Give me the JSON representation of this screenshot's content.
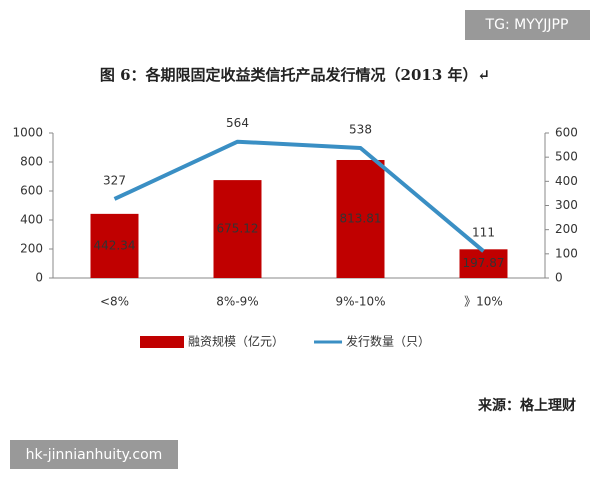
{
  "chart_data": {
    "type": "bar",
    "title": "图 6：各期限固定收益类信托产品发行情况（2013 年）↵",
    "categories": [
      "<8%",
      "8%-9%",
      "9%-10%",
      "》10%"
    ],
    "series": [
      {
        "name": "融资规模（亿元）",
        "type": "bar",
        "color": "#c00000",
        "values": [
          442.34,
          675.12,
          813.81,
          197.87
        ]
      },
      {
        "name": "发行数量（只）",
        "type": "line",
        "axis": "y2",
        "color": "#3a8fc4",
        "values": [
          327,
          564,
          538,
          111
        ]
      }
    ],
    "ylim": [
      0,
      1000
    ],
    "yticks": [
      0,
      200,
      400,
      600,
      800,
      1000
    ],
    "y2lim": [
      0,
      600
    ],
    "y2ticks": [
      0,
      100,
      200,
      300,
      400,
      500,
      600
    ],
    "grid": false,
    "legend": "bottom",
    "source": "来源：格上理财",
    "watermarks": [
      "TG: MYYJJPP",
      "hk-jinnianhuity.com"
    ]
  }
}
